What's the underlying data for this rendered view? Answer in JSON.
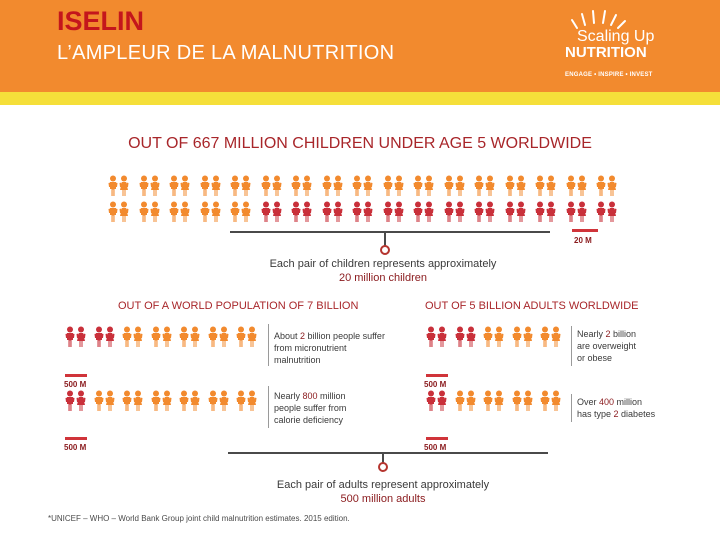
{
  "header": {
    "title": "ISELIN",
    "subtitle": "L’AMPLEUR DE LA MALNUTRITION",
    "logo": {
      "line1": "Scaling Up",
      "line2": "NUTRITION",
      "tagline": "ENGAGE • INSPIRE • INVEST"
    }
  },
  "children": {
    "heading": "OUT OF 667 MILLION CHILDREN UNDER AGE 5 WORLDWIDE",
    "scale_label": "20 M",
    "caption_line1": "Each pair of children represents approximately",
    "caption_line2": "20 million children",
    "rows": [
      {
        "orange_pairs": 17,
        "red_pairs": 0
      },
      {
        "orange_pairs": 5,
        "red_pairs": 12
      }
    ]
  },
  "world": {
    "heading": "OUT OF A WORLD POPULATION OF 7 BILLION",
    "note1_prefix": "About ",
    "note1_highlight": "2",
    "note1_line1_suffix": " billion people suffer",
    "note1_line2": "from micronutrient",
    "note1_line3": "malnutrition",
    "note2_prefix": "Nearly ",
    "note2_highlight": "800",
    "note2_line1_suffix": " million",
    "note2_line2": "people suffer from",
    "note2_line3": "calorie deficiency",
    "scale_label_1": "500 M",
    "scale_label_2": "500 M",
    "rows": [
      {
        "red_pairs": 2,
        "orange_pairs": 5
      },
      {
        "red_pairs": 1,
        "orange_pairs": 6
      }
    ]
  },
  "adults": {
    "heading": "OUT OF 5 BILLION ADULTS WORLDWIDE",
    "note1_prefix": "Nearly ",
    "note1_highlight": "2",
    "note1_line1_suffix": " billion",
    "note1_line2": "are overweight",
    "note1_line3": "or obese",
    "note2_prefix": "Over ",
    "note2_highlight": "400",
    "note2_line1_suffix": " million",
    "note2_line2_prefix": "has type ",
    "note2_line2_highlight": "2",
    "note2_line2_suffix": " diabetes",
    "scale_label_1": "500 M",
    "scale_label_2": "500 M",
    "rows": [
      {
        "red_pairs": 2,
        "orange_pairs": 3
      },
      {
        "red_pairs": 1,
        "orange_pairs": 4
      }
    ]
  },
  "adults_caption_line1": "Each pair of adults represent approximately",
  "adults_caption_line2": "500 million adults",
  "footnote": "*UNICEF – WHO – World Bank Group joint child malnutrition estimates. 2015 edition.",
  "colors": {
    "orange": "#f28a2e",
    "red": "#c9303a",
    "banner": "#f28a2e",
    "strip": "#f5df3a",
    "title_red": "#c4161c"
  }
}
